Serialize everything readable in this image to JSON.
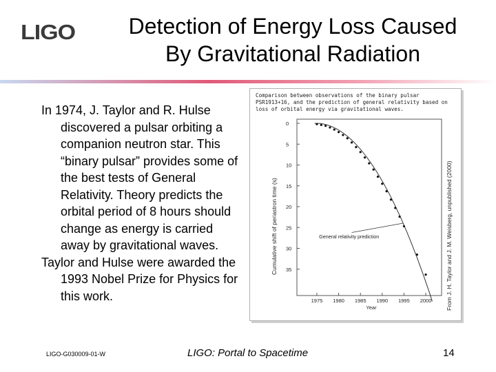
{
  "header": {
    "logo_text": "LIGO",
    "title_line1": "Detection of Energy Loss Caused",
    "title_line2": "By Gravitational Radiation",
    "rule_gradient": [
      "#c8d8f0",
      "#e05a78",
      "#f1a0b2",
      "#ffffff"
    ]
  },
  "body": {
    "paragraph1": "In 1974, J. Taylor and R. Hulse discovered a pulsar orbiting a companion neutron star. This “binary pulsar” provides some of the best tests of General Relativity. Theory predicts the orbital period of 8 hours should change as energy is carried away by gravitational waves.",
    "paragraph2": "Taylor and Hulse were awarded the 1993 Nobel Prize for Physics for this work."
  },
  "figure": {
    "caption_line1": "Comparison between observations of the binary pulsar",
    "caption_line2": "PSR1913+16, and the prediction of general relativity based on",
    "caption_line3": "loss of orbital energy via gravitational waves.",
    "credit": "From J. H. Taylor and J. M. Weisberg, unpublished (2000)",
    "prediction_label": "General relativity prediction",
    "chart_data": {
      "type": "scatter",
      "ylabel": "Cumulative shift of periastron time (s)",
      "xlabel": "Year",
      "xlim": [
        1972,
        2003
      ],
      "ylim": [
        0,
        -40
      ],
      "x_ticks": [
        "1975",
        "1980",
        "1985",
        "1990",
        "1995",
        "2000"
      ],
      "y_ticks": [
        "0",
        "5",
        "10",
        "15",
        "20",
        "25",
        "30",
        "35"
      ],
      "observations": [
        {
          "x": 1975.0,
          "y": -0.2
        },
        {
          "x": 1976.0,
          "y": -0.4
        },
        {
          "x": 1977.0,
          "y": -0.6
        },
        {
          "x": 1978.0,
          "y": -1.0
        },
        {
          "x": 1979.0,
          "y": -1.5
        },
        {
          "x": 1980.0,
          "y": -2.1
        },
        {
          "x": 1981.0,
          "y": -2.8
        },
        {
          "x": 1982.0,
          "y": -3.6
        },
        {
          "x": 1983.0,
          "y": -4.6
        },
        {
          "x": 1984.0,
          "y": -5.7
        },
        {
          "x": 1985.0,
          "y": -6.9
        },
        {
          "x": 1986.0,
          "y": -8.2
        },
        {
          "x": 1987.0,
          "y": -9.6
        },
        {
          "x": 1988.0,
          "y": -11.1
        },
        {
          "x": 1989.0,
          "y": -12.8
        },
        {
          "x": 1990.0,
          "y": -14.5
        },
        {
          "x": 1991.0,
          "y": -16.3
        },
        {
          "x": 1992.0,
          "y": -18.3
        },
        {
          "x": 1993.0,
          "y": -20.3
        },
        {
          "x": 1994.0,
          "y": -22.4
        },
        {
          "x": 1995.0,
          "y": -24.7
        },
        {
          "x": 1998.0,
          "y": -31.5
        },
        {
          "x": 2000.0,
          "y": -36.3
        }
      ]
    }
  },
  "footer": {
    "doc_id": "LIGO-G030009-01-W",
    "center_text": "LIGO: Portal to Spacetime",
    "page_number": "14"
  }
}
